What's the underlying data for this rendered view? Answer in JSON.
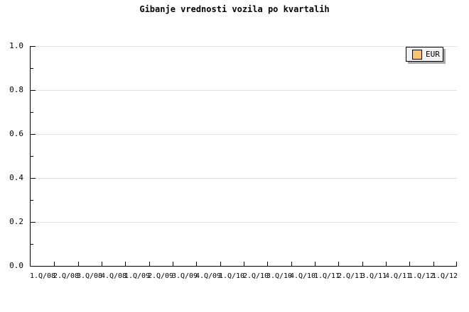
{
  "chart_data": {
    "type": "line",
    "title": "Gibanje vrednosti vozila po kvartalih",
    "categories": [
      "1.Q/08",
      "2.Q/08",
      "3.Q/08",
      "4.Q/08",
      "1.Q/09",
      "2.Q/09",
      "3.Q/09",
      "4.Q/09",
      "1.Q/10",
      "2.Q/10",
      "3.Q/10",
      "4.Q/10",
      "1.Q/11",
      "2.Q/11",
      "3.Q/11",
      "4.Q/11",
      "1.Q/12",
      "1.Q/12"
    ],
    "series": [
      {
        "name": "EUR",
        "color": "#fac56e",
        "values": []
      }
    ],
    "xlabel": "",
    "ylabel": "",
    "ylim": [
      0.0,
      1.0
    ],
    "yticks": [
      0.0,
      0.2,
      0.4,
      0.6,
      0.8,
      1.0
    ],
    "ytick_labels": [
      "0.0",
      "0.2",
      "0.4",
      "0.6",
      "0.8",
      "1.0"
    ],
    "y_minor_ticks": [
      0.1,
      0.3,
      0.5,
      0.7,
      0.9
    ],
    "grid": "horizontal-major",
    "legend_position": "top-right"
  },
  "colors": {
    "background": "#ffffff",
    "text": "#000000",
    "axis": "#000000",
    "gridline": "#e0e0e0",
    "legend_background": "#f2f2f2",
    "legend_border": "#000000",
    "legend_shadow": "#a8a8a8",
    "series_swatch": "#fac56e"
  }
}
